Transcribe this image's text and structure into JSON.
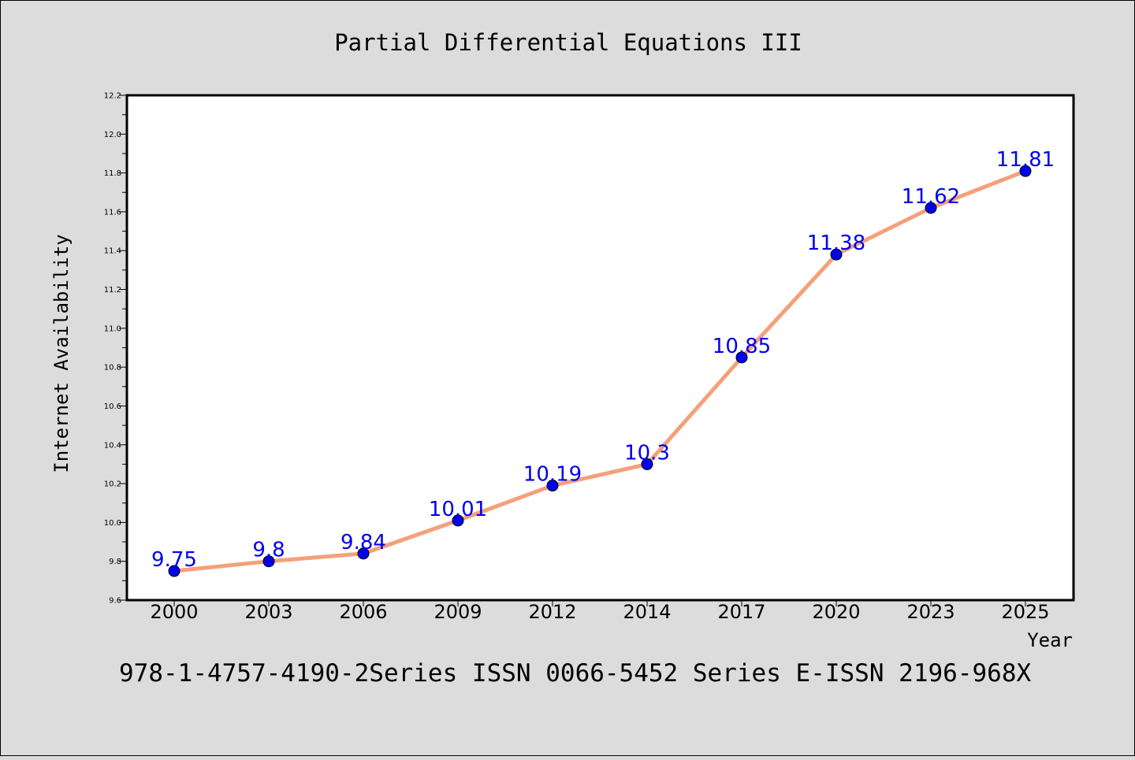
{
  "chart_data": {
    "type": "line",
    "title": "Partial Differential Equations III",
    "xlabel": "Year",
    "ylabel": "Internet Availability",
    "categories": [
      "2000",
      "2003",
      "2006",
      "2009",
      "2012",
      "2014",
      "2017",
      "2020",
      "2023",
      "2025"
    ],
    "series": [
      {
        "values": [
          9.75,
          9.8,
          9.84,
          10.01,
          10.19,
          10.3,
          10.85,
          11.38,
          11.62,
          11.81
        ]
      }
    ],
    "data_labels": [
      "9.75",
      "9.8",
      "9.84",
      "10.01",
      "10.19",
      "10.3",
      "10.85",
      "11.38",
      "11.62",
      "11.81"
    ],
    "ylim": [
      9.6,
      12.2
    ],
    "yticks": [
      "9.6",
      "9.8",
      "10.0",
      "10.2",
      "10.4",
      "10.6",
      "10.8",
      "11.0",
      "11.2",
      "11.4",
      "11.6",
      "11.8",
      "12.0",
      "12.2"
    ],
    "grid": false,
    "legend": "none",
    "line_color": "#f5a07a",
    "marker_color": "#0000ee",
    "label_color": "#0000ee"
  },
  "footer_text": "978-1-4757-4190-2Series ISSN 0066-5452 Series E-ISSN 2196-968X"
}
